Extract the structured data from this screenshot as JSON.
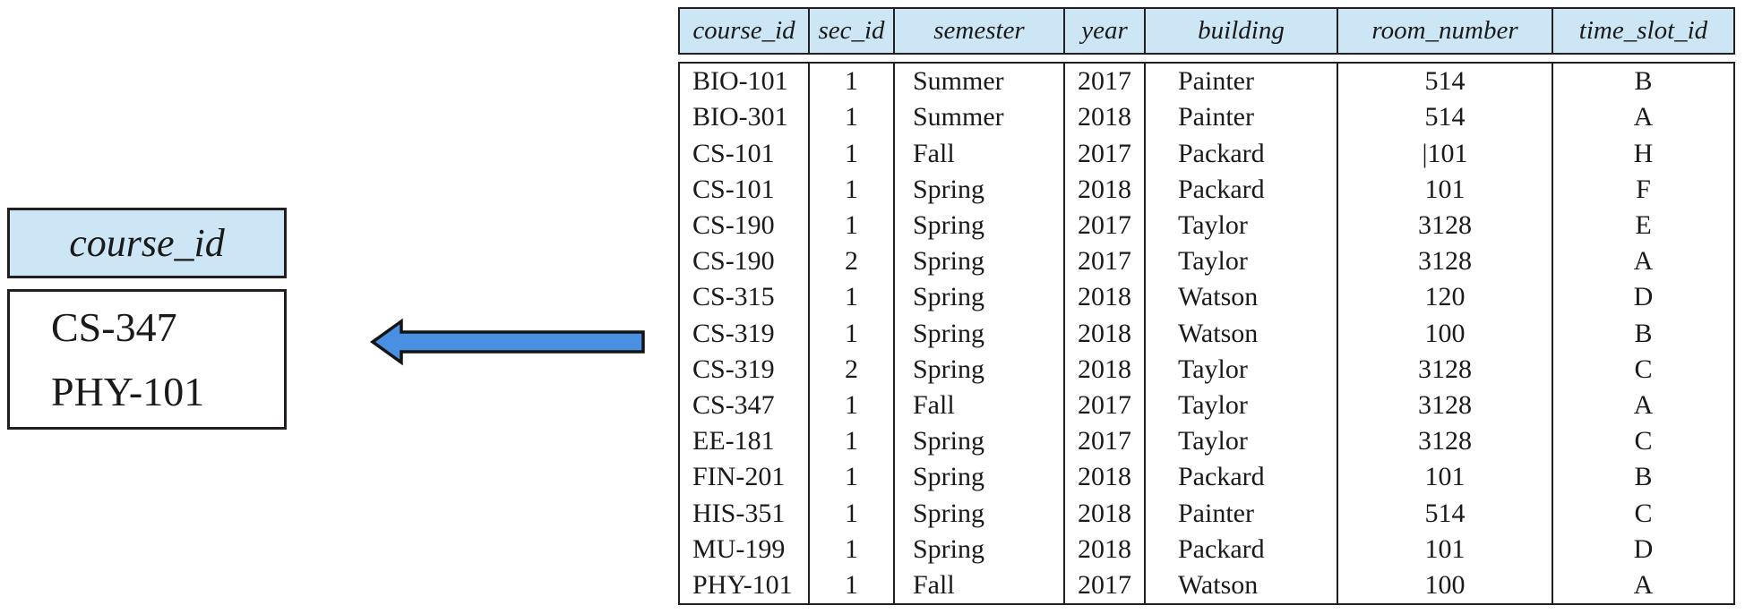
{
  "colors": {
    "header_bg": "#cde6f6",
    "border": "#231f20",
    "arrow_fill": "#4a90e2",
    "arrow_stroke": "#141414"
  },
  "result": {
    "header": "course_id",
    "values": [
      "CS-347",
      "PHY-101"
    ]
  },
  "arrow": {
    "icon": "left-arrow",
    "direction": "left"
  },
  "table": {
    "columns": [
      {
        "key": "course_id",
        "label": "course_id"
      },
      {
        "key": "sec_id",
        "label": "sec_id"
      },
      {
        "key": "semester",
        "label": "semester"
      },
      {
        "key": "year",
        "label": "year"
      },
      {
        "key": "building",
        "label": "building"
      },
      {
        "key": "room_number",
        "label": "room_number"
      },
      {
        "key": "time_slot_id",
        "label": "time_slot_id"
      }
    ],
    "rows": [
      [
        "BIO-101",
        "1",
        "Summer",
        "2017",
        "Painter",
        "514",
        "B"
      ],
      [
        "BIO-301",
        "1",
        "Summer",
        "2018",
        "Painter",
        "514",
        "A"
      ],
      [
        "CS-101",
        "1",
        "Fall",
        "2017",
        "Packard",
        "|101",
        "H"
      ],
      [
        "CS-101",
        "1",
        "Spring",
        "2018",
        "Packard",
        "101",
        "F"
      ],
      [
        "CS-190",
        "1",
        "Spring",
        "2017",
        "Taylor",
        "3128",
        "E"
      ],
      [
        "CS-190",
        "2",
        "Spring",
        "2017",
        "Taylor",
        "3128",
        "A"
      ],
      [
        "CS-315",
        "1",
        "Spring",
        "2018",
        "Watson",
        "120",
        "D"
      ],
      [
        "CS-319",
        "1",
        "Spring",
        "2018",
        "Watson",
        "100",
        "B"
      ],
      [
        "CS-319",
        "2",
        "Spring",
        "2018",
        "Taylor",
        "3128",
        "C"
      ],
      [
        "CS-347",
        "1",
        "Fall",
        "2017",
        "Taylor",
        "3128",
        "A"
      ],
      [
        "EE-181",
        "1",
        "Spring",
        "2017",
        "Taylor",
        "3128",
        "C"
      ],
      [
        "FIN-201",
        "1",
        "Spring",
        "2018",
        "Packard",
        "101",
        "B"
      ],
      [
        "HIS-351",
        "1",
        "Spring",
        "2018",
        "Painter",
        "514",
        "C"
      ],
      [
        "MU-199",
        "1",
        "Spring",
        "2018",
        "Packard",
        "101",
        "D"
      ],
      [
        "PHY-101",
        "1",
        "Fall",
        "2017",
        "Watson",
        "100",
        "A"
      ]
    ]
  }
}
